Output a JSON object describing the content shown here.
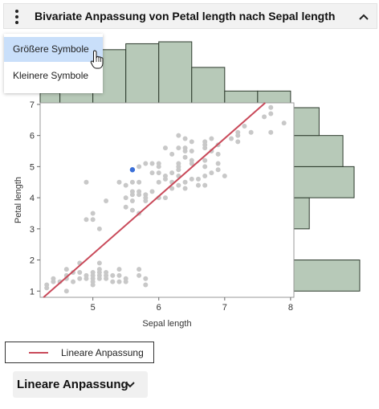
{
  "header": {
    "title": "Bivariate Anpassung von Petal length nach Sepal length"
  },
  "menu": {
    "items": [
      "Größere Symbole",
      "Kleinere Symbole"
    ]
  },
  "chart_data": {
    "type": "scatter",
    "xlabel": "Sepal length",
    "ylabel": "Petal length",
    "xlim": [
      4.2,
      8.05
    ],
    "ylim": [
      0.8,
      7.05
    ],
    "xticks": [
      5,
      6,
      7,
      8
    ],
    "yticks": [
      1,
      2,
      3,
      4,
      5,
      6,
      7
    ],
    "points": [
      [
        4.3,
        1.1
      ],
      [
        4.4,
        1.3
      ],
      [
        4.4,
        1.4
      ],
      [
        4.5,
        1.3
      ],
      [
        4.6,
        1.0
      ],
      [
        4.6,
        1.4
      ],
      [
        4.7,
        1.3
      ],
      [
        4.7,
        1.6
      ],
      [
        4.8,
        1.4
      ],
      [
        4.8,
        1.6
      ],
      [
        4.8,
        1.9
      ],
      [
        4.9,
        1.4
      ],
      [
        4.9,
        1.5
      ],
      [
        4.9,
        3.3
      ],
      [
        4.9,
        4.5
      ],
      [
        5.0,
        1.2
      ],
      [
        5.0,
        1.3
      ],
      [
        5.0,
        1.4
      ],
      [
        5.0,
        1.5
      ],
      [
        5.0,
        1.6
      ],
      [
        5.0,
        3.3
      ],
      [
        5.0,
        3.5
      ],
      [
        5.1,
        1.4
      ],
      [
        5.1,
        1.5
      ],
      [
        5.1,
        1.6
      ],
      [
        5.1,
        1.7
      ],
      [
        5.1,
        1.9
      ],
      [
        5.1,
        3.0
      ],
      [
        5.2,
        1.4
      ],
      [
        5.2,
        1.5
      ],
      [
        5.2,
        3.9
      ],
      [
        5.3,
        1.5
      ],
      [
        5.4,
        1.3
      ],
      [
        5.4,
        1.5
      ],
      [
        5.4,
        1.7
      ],
      [
        5.4,
        4.5
      ],
      [
        5.5,
        1.3
      ],
      [
        5.5,
        1.4
      ],
      [
        5.5,
        3.7
      ],
      [
        5.5,
        4.0
      ],
      [
        5.5,
        4.4
      ],
      [
        5.6,
        3.6
      ],
      [
        5.6,
        3.9
      ],
      [
        5.6,
        4.1
      ],
      [
        5.6,
        4.2
      ],
      [
        5.6,
        4.5
      ],
      [
        5.6,
        4.9
      ],
      [
        5.7,
        1.5
      ],
      [
        5.7,
        1.7
      ],
      [
        5.7,
        3.5
      ],
      [
        5.7,
        4.1
      ],
      [
        5.7,
        4.2
      ],
      [
        5.7,
        4.5
      ],
      [
        5.7,
        5.0
      ],
      [
        5.8,
        1.2
      ],
      [
        5.8,
        1.4
      ],
      [
        5.8,
        3.9
      ],
      [
        5.8,
        4.0
      ],
      [
        5.8,
        4.1
      ],
      [
        5.8,
        5.1
      ],
      [
        5.9,
        4.2
      ],
      [
        5.9,
        4.8
      ],
      [
        5.9,
        5.1
      ],
      [
        6.0,
        4.0
      ],
      [
        6.0,
        4.5
      ],
      [
        6.0,
        4.8
      ],
      [
        6.0,
        5.0
      ],
      [
        6.0,
        5.1
      ],
      [
        6.1,
        4.0
      ],
      [
        6.1,
        4.6
      ],
      [
        6.1,
        4.7
      ],
      [
        6.1,
        5.6
      ],
      [
        6.2,
        4.3
      ],
      [
        6.2,
        4.5
      ],
      [
        6.2,
        4.8
      ],
      [
        6.2,
        5.4
      ],
      [
        6.3,
        4.4
      ],
      [
        6.3,
        4.7
      ],
      [
        6.3,
        4.9
      ],
      [
        6.3,
        5.0
      ],
      [
        6.3,
        5.1
      ],
      [
        6.3,
        5.6
      ],
      [
        6.3,
        6.0
      ],
      [
        6.4,
        4.3
      ],
      [
        6.4,
        4.5
      ],
      [
        6.4,
        5.3
      ],
      [
        6.4,
        5.5
      ],
      [
        6.4,
        5.6
      ],
      [
        6.4,
        5.9
      ],
      [
        6.5,
        4.6
      ],
      [
        6.5,
        5.1
      ],
      [
        6.5,
        5.2
      ],
      [
        6.5,
        5.5
      ],
      [
        6.5,
        5.8
      ],
      [
        6.6,
        4.4
      ],
      [
        6.6,
        4.6
      ],
      [
        6.7,
        4.4
      ],
      [
        6.7,
        4.7
      ],
      [
        6.7,
        5.0
      ],
      [
        6.7,
        5.2
      ],
      [
        6.7,
        5.6
      ],
      [
        6.7,
        5.7
      ],
      [
        6.7,
        5.8
      ],
      [
        6.8,
        4.8
      ],
      [
        6.8,
        5.5
      ],
      [
        6.8,
        5.9
      ],
      [
        6.9,
        4.9
      ],
      [
        6.9,
        5.1
      ],
      [
        6.9,
        5.4
      ],
      [
        6.9,
        5.7
      ],
      [
        7.0,
        4.7
      ],
      [
        7.1,
        5.9
      ],
      [
        7.2,
        5.8
      ],
      [
        7.2,
        6.0
      ],
      [
        7.2,
        6.1
      ],
      [
        7.3,
        6.3
      ],
      [
        7.4,
        6.1
      ],
      [
        7.6,
        6.6
      ],
      [
        7.7,
        6.1
      ],
      [
        7.7,
        6.7
      ],
      [
        7.7,
        6.9
      ],
      [
        7.9,
        6.4
      ],
      [
        4.3,
        1.2
      ],
      [
        4.6,
        1.5
      ],
      [
        5.2,
        1.6
      ],
      [
        4.6,
        1.7
      ],
      [
        5.3,
        1.3
      ]
    ],
    "selected_point": [
      5.6,
      4.9
    ],
    "fit_line": {
      "intercept": -7.101,
      "slope": 1.8584
    },
    "x_hist": {
      "edges": [
        4.0,
        4.5,
        5.0,
        5.5,
        6.0,
        6.5,
        7.0,
        7.5,
        8.0
      ],
      "counts": [
        5,
        27,
        27,
        30,
        31,
        18,
        6,
        6
      ]
    },
    "y_hist": [
      {
        "y0": 1.0,
        "y1": 2.0,
        "count": 47
      },
      {
        "y0": 3.0,
        "y1": 4.0,
        "count": 11
      },
      {
        "y0": 4.0,
        "y1": 5.0,
        "count": 43
      },
      {
        "y0": 5.0,
        "y1": 6.0,
        "count": 35
      },
      {
        "y0": 6.0,
        "y1": 7.0,
        "count": 18
      },
      {
        "y0": 7.0,
        "y1": 8.0,
        "count": 10
      }
    ],
    "colors": {
      "points": "#c8c8c8",
      "selected": "#3a6fd8",
      "fit": "#c94a5a",
      "hist_fill": "#b7c9b8",
      "hist_stroke": "#2c3a2c"
    }
  },
  "legend": {
    "label": "Lineare Anpassung"
  },
  "fit_button": {
    "label": "Lineare Anpassung"
  }
}
